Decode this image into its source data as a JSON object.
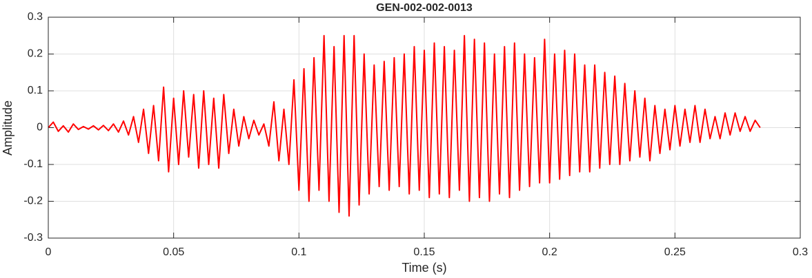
{
  "chart_data": {
    "type": "line",
    "title": "GEN-002-002-0013",
    "x_label": "Time (s)",
    "y_label": "Amplitude",
    "x": [
      0,
      0.002,
      0.004,
      0.006,
      0.008,
      0.01,
      0.012,
      0.014,
      0.016,
      0.018,
      0.02,
      0.022,
      0.024,
      0.026,
      0.028,
      0.03,
      0.032,
      0.034,
      0.036,
      0.038,
      0.04,
      0.042,
      0.044,
      0.046,
      0.048,
      0.05,
      0.052,
      0.054,
      0.056,
      0.058,
      0.06,
      0.062,
      0.064,
      0.066,
      0.068,
      0.07,
      0.072,
      0.074,
      0.076,
      0.078,
      0.08,
      0.082,
      0.084,
      0.086,
      0.088,
      0.09,
      0.092,
      0.094,
      0.096,
      0.098,
      0.1,
      0.102,
      0.104,
      0.106,
      0.108,
      0.11,
      0.112,
      0.114,
      0.116,
      0.118,
      0.12,
      0.122,
      0.124,
      0.126,
      0.128,
      0.13,
      0.132,
      0.134,
      0.136,
      0.138,
      0.14,
      0.142,
      0.144,
      0.146,
      0.148,
      0.15,
      0.152,
      0.154,
      0.156,
      0.158,
      0.16,
      0.162,
      0.164,
      0.166,
      0.168,
      0.17,
      0.172,
      0.174,
      0.176,
      0.178,
      0.18,
      0.182,
      0.184,
      0.186,
      0.188,
      0.19,
      0.192,
      0.194,
      0.196,
      0.198,
      0.2,
      0.202,
      0.204,
      0.206,
      0.208,
      0.21,
      0.212,
      0.214,
      0.216,
      0.218,
      0.22,
      0.222,
      0.224,
      0.226,
      0.228,
      0.23,
      0.232,
      0.234,
      0.236,
      0.238,
      0.24,
      0.242,
      0.244,
      0.246,
      0.248,
      0.25,
      0.252,
      0.254,
      0.256,
      0.258,
      0.26,
      0.262,
      0.264,
      0.266,
      0.268,
      0.27,
      0.272,
      0.274,
      0.276,
      0.278,
      0.28,
      0.282,
      0.284
    ],
    "series": [
      {
        "color": "#ff0000",
        "values": [
          0,
          0.015,
          -0.01,
          0.005,
          -0.012,
          0.01,
          -0.005,
          0.003,
          -0.004,
          0.005,
          -0.006,
          0.006,
          -0.008,
          0.01,
          -0.012,
          0.018,
          -0.02,
          0.03,
          -0.04,
          0.05,
          -0.07,
          0.06,
          -0.09,
          0.11,
          -0.12,
          0.08,
          -0.1,
          0.1,
          -0.08,
          0.09,
          -0.11,
          0.1,
          -0.1,
          0.08,
          -0.11,
          0.09,
          -0.07,
          0.05,
          -0.05,
          0.03,
          -0.03,
          0.02,
          -0.02,
          0.01,
          -0.05,
          0.07,
          -0.09,
          0.05,
          -0.1,
          0.13,
          -0.17,
          0.16,
          -0.2,
          0.19,
          -0.17,
          0.25,
          -0.2,
          0.22,
          -0.23,
          0.25,
          -0.24,
          0.25,
          -0.21,
          0.2,
          -0.18,
          0.17,
          -0.16,
          0.18,
          -0.17,
          0.19,
          -0.16,
          0.2,
          -0.18,
          0.22,
          -0.17,
          0.21,
          -0.19,
          0.23,
          -0.18,
          0.22,
          -0.19,
          0.21,
          -0.17,
          0.25,
          -0.2,
          0.24,
          -0.19,
          0.23,
          -0.2,
          0.2,
          -0.18,
          0.22,
          -0.19,
          0.23,
          -0.17,
          0.2,
          -0.16,
          0.19,
          -0.15,
          0.24,
          -0.15,
          0.2,
          -0.14,
          0.21,
          -0.13,
          0.2,
          -0.12,
          0.17,
          -0.12,
          0.17,
          -0.11,
          0.15,
          -0.1,
          0.14,
          -0.1,
          0.12,
          -0.09,
          0.1,
          -0.08,
          0.08,
          -0.09,
          0.06,
          -0.07,
          0.05,
          -0.06,
          0.06,
          -0.05,
          0.05,
          -0.04,
          0.06,
          -0.04,
          0.05,
          -0.03,
          0.03,
          -0.03,
          0.04,
          -0.02,
          0.04,
          -0.01,
          0.03,
          -0.01,
          0.02,
          0
        ]
      }
    ],
    "xlim": [
      0,
      0.3
    ],
    "xticks": [
      0,
      0.05,
      0.1,
      0.15,
      0.2,
      0.25,
      0.3
    ],
    "ylim": [
      -0.3,
      0.3
    ],
    "yticks": [
      -0.3,
      -0.2,
      -0.1,
      0,
      0.1,
      0.2,
      0.3
    ],
    "grid": true
  }
}
